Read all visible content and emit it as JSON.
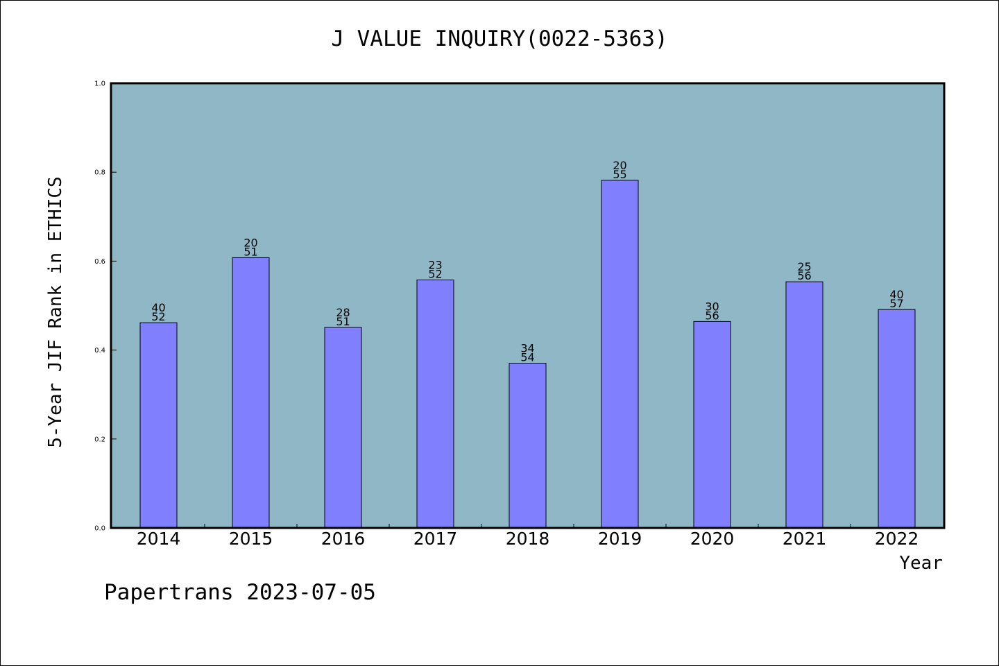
{
  "chart_data": {
    "type": "bar",
    "title": "J VALUE INQUIRY(0022-5363)",
    "xlabel": "Year",
    "ylabel": "5-Year JIF Rank in ETHICS",
    "categories": [
      "2014",
      "2015",
      "2016",
      "2017",
      "2018",
      "2019",
      "2020",
      "2021",
      "2022"
    ],
    "values": [
      0.4615,
      0.6078,
      0.451,
      0.5577,
      0.3704,
      0.7818,
      0.4643,
      0.5536,
      0.4912
    ],
    "bar_labels": [
      {
        "top": "40",
        "bottom": "52"
      },
      {
        "top": "20",
        "bottom": "51"
      },
      {
        "top": "28",
        "bottom": "51"
      },
      {
        "top": "23",
        "bottom": "52"
      },
      {
        "top": "34",
        "bottom": "54"
      },
      {
        "top": "20",
        "bottom": "55"
      },
      {
        "top": "30",
        "bottom": "56"
      },
      {
        "top": "25",
        "bottom": "56"
      },
      {
        "top": "40",
        "bottom": "57"
      }
    ],
    "ylim": [
      0,
      1.0
    ],
    "yticks": [
      "0.0",
      "0.2",
      "0.4",
      "0.6",
      "0.8",
      "1.0"
    ],
    "grid": false,
    "colors": {
      "plot_background": "#8fb7c6",
      "bar_fill": "#8080ff",
      "bar_stroke": "#000000"
    }
  },
  "footer": {
    "text": "Papertrans 2023-07-05"
  }
}
